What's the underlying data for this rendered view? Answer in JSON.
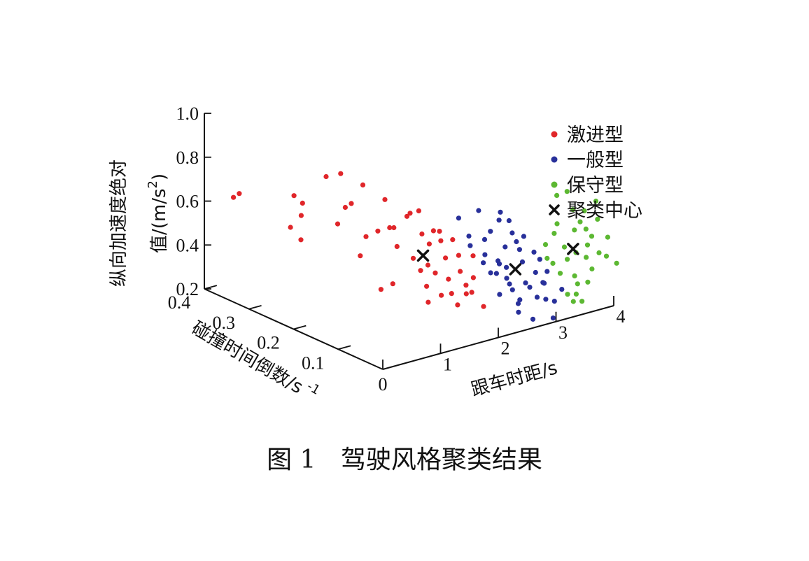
{
  "caption": {
    "figure_no": "图 1",
    "title": "驾驶风格聚类结果"
  },
  "chart_data": {
    "type": "scatter3d",
    "axes": {
      "x": {
        "label": "跟车时距/s",
        "ticks": [
          0,
          1,
          2,
          3,
          4
        ],
        "range": [
          0,
          4
        ]
      },
      "y": {
        "label": "碰撞时间倒数/s",
        "label_sup": "-1",
        "ticks": [
          0,
          0.1,
          0.2,
          0.3,
          0.4
        ],
        "tick_labels": [
          "0",
          "0.1",
          "0.2",
          "0.3",
          "0.4"
        ],
        "range": [
          0,
          0.4
        ]
      },
      "z": {
        "label": "纵向加速度绝对值/(m/s",
        "label_sup": "2",
        "label_tail": ")",
        "ticks": [
          0.2,
          0.4,
          0.6,
          0.8,
          1.0
        ],
        "tick_labels": [
          "0.2",
          "0.4",
          "0.6",
          "0.8",
          "1.0"
        ],
        "range": [
          0.2,
          1.0
        ]
      }
    },
    "legend": {
      "placement": "top-right"
    },
    "series": [
      {
        "name": "激进型",
        "color": "#e0262a",
        "marker": "dot",
        "points": [
          [
            0.35,
            0.38,
            0.61
          ],
          [
            0.45,
            0.38,
            0.62
          ],
          [
            0.75,
            0.28,
            0.59
          ],
          [
            0.78,
            0.3,
            0.66
          ],
          [
            0.85,
            0.29,
            0.63
          ],
          [
            0.72,
            0.3,
            0.52
          ],
          [
            0.95,
            0.25,
            0.78
          ],
          [
            0.97,
            0.22,
            0.82
          ],
          [
            1.0,
            0.2,
            0.7
          ],
          [
            1.05,
            0.22,
            0.66
          ],
          [
            1.1,
            0.18,
            0.56
          ],
          [
            1.0,
            0.18,
            0.48
          ],
          [
            1.05,
            0.14,
            0.36
          ],
          [
            1.1,
            0.12,
            0.4
          ],
          [
            1.15,
            0.16,
            0.6
          ],
          [
            1.2,
            0.14,
            0.63
          ],
          [
            1.25,
            0.13,
            0.55
          ],
          [
            1.3,
            0.1,
            0.52
          ],
          [
            1.35,
            0.09,
            0.47
          ],
          [
            1.4,
            0.08,
            0.5
          ],
          [
            1.3,
            0.07,
            0.42
          ],
          [
            1.4,
            0.12,
            0.7
          ],
          [
            1.45,
            0.1,
            0.62
          ],
          [
            1.5,
            0.09,
            0.58
          ],
          [
            1.45,
            0.07,
            0.47
          ],
          [
            1.55,
            0.06,
            0.54
          ],
          [
            1.6,
            0.06,
            0.44
          ],
          [
            1.5,
            0.04,
            0.4
          ],
          [
            1.65,
            0.04,
            0.49
          ],
          [
            1.7,
            0.05,
            0.55
          ],
          [
            1.6,
            0.08,
            0.64
          ],
          [
            1.75,
            0.04,
            0.42
          ],
          [
            1.8,
            0.03,
            0.46
          ],
          [
            1.2,
            0.2,
            0.77
          ],
          [
            1.35,
            0.17,
            0.72
          ],
          [
            1.55,
            0.12,
            0.7
          ],
          [
            1.65,
            0.1,
            0.62
          ],
          [
            0.9,
            0.3,
            0.45
          ],
          [
            1.15,
            0.25,
            0.55
          ],
          [
            1.25,
            0.06,
            0.36
          ],
          [
            1.45,
            0.02,
            0.37
          ],
          [
            1.85,
            0.04,
            0.38
          ],
          [
            1.7,
            0.09,
            0.58
          ],
          [
            1.9,
            0.02,
            0.33
          ],
          [
            1.35,
            0.15,
            0.61
          ],
          [
            1.5,
            0.14,
            0.66
          ],
          [
            1.6,
            0.02,
            0.41
          ],
          [
            1.95,
            0.05,
            0.53
          ],
          [
            1.4,
            0.05,
            0.39
          ],
          [
            1.75,
            0.07,
            0.6
          ]
        ]
      },
      {
        "name": "一般型",
        "color": "#28309a",
        "marker": "dot",
        "points": [
          [
            1.7,
            0.05,
            0.72
          ],
          [
            1.8,
            0.04,
            0.64
          ],
          [
            1.9,
            0.05,
            0.58
          ],
          [
            2.0,
            0.03,
            0.55
          ],
          [
            2.05,
            0.04,
            0.5
          ],
          [
            2.1,
            0.03,
            0.46
          ],
          [
            2.15,
            0.02,
            0.52
          ],
          [
            2.2,
            0.03,
            0.45
          ],
          [
            2.25,
            0.03,
            0.49
          ],
          [
            2.3,
            0.02,
            0.43
          ],
          [
            2.35,
            0.02,
            0.4
          ],
          [
            2.4,
            0.02,
            0.37
          ],
          [
            2.45,
            0.01,
            0.33
          ],
          [
            2.5,
            0.02,
            0.3
          ],
          [
            2.35,
            0.03,
            0.56
          ],
          [
            2.25,
            0.05,
            0.62
          ],
          [
            2.4,
            0.05,
            0.66
          ],
          [
            2.55,
            0.04,
            0.6
          ],
          [
            2.6,
            0.03,
            0.53
          ],
          [
            2.65,
            0.03,
            0.47
          ],
          [
            2.55,
            0.01,
            0.4
          ],
          [
            2.7,
            0.02,
            0.36
          ],
          [
            2.75,
            0.01,
            0.32
          ],
          [
            2.8,
            0.02,
            0.42
          ],
          [
            2.85,
            0.01,
            0.38
          ],
          [
            2.9,
            0.01,
            0.3
          ],
          [
            2.95,
            0.02,
            0.36
          ],
          [
            2.85,
            0.03,
            0.5
          ],
          [
            2.75,
            0.04,
            0.57
          ],
          [
            2.95,
            0.03,
            0.46
          ],
          [
            3.0,
            0.02,
            0.41
          ],
          [
            3.05,
            0.01,
            0.28
          ],
          [
            2.6,
            0.0,
            0.24
          ],
          [
            2.65,
            0.06,
            0.63
          ],
          [
            2.5,
            0.06,
            0.68
          ],
          [
            2.2,
            0.07,
            0.7
          ],
          [
            2.95,
            0.0,
            0.22
          ],
          [
            2.15,
            0.05,
            0.59
          ],
          [
            2.7,
            0.05,
            0.54
          ],
          [
            2.45,
            0.04,
            0.45
          ],
          [
            3.1,
            0.0,
            0.34
          ],
          [
            2.35,
            0.0,
            0.29
          ],
          [
            2.1,
            0.01,
            0.38
          ]
        ]
      },
      {
        "name": "保守型",
        "color": "#5cb832",
        "marker": "dot",
        "points": [
          [
            3.0,
            0.02,
            0.47
          ],
          [
            3.05,
            0.03,
            0.52
          ],
          [
            3.1,
            0.02,
            0.44
          ],
          [
            3.15,
            0.01,
            0.4
          ],
          [
            3.2,
            0.03,
            0.56
          ],
          [
            3.25,
            0.03,
            0.6
          ],
          [
            3.3,
            0.02,
            0.5
          ],
          [
            3.35,
            0.02,
            0.44
          ],
          [
            3.4,
            0.01,
            0.37
          ],
          [
            3.45,
            0.01,
            0.33
          ],
          [
            3.5,
            0.02,
            0.46
          ],
          [
            3.55,
            0.03,
            0.55
          ],
          [
            3.6,
            0.04,
            0.63
          ],
          [
            3.65,
            0.03,
            0.58
          ],
          [
            3.7,
            0.02,
            0.48
          ],
          [
            3.75,
            0.03,
            0.54
          ],
          [
            3.8,
            0.04,
            0.61
          ],
          [
            3.85,
            0.03,
            0.5
          ],
          [
            3.9,
            0.02,
            0.43
          ],
          [
            3.95,
            0.03,
            0.57
          ],
          [
            4.0,
            0.04,
            0.64
          ],
          [
            3.5,
            0.04,
            0.72
          ],
          [
            3.4,
            0.05,
            0.7
          ],
          [
            3.35,
            0.0,
            0.3
          ],
          [
            3.55,
            0.0,
            0.34
          ],
          [
            3.7,
            0.01,
            0.38
          ],
          [
            3.3,
            0.0,
            0.27
          ],
          [
            3.45,
            0.0,
            0.26
          ],
          [
            3.95,
            0.01,
            0.42
          ],
          [
            4.05,
            0.02,
            0.49
          ],
          [
            4.05,
            0.0,
            0.39
          ],
          [
            3.2,
            0.0,
            0.31
          ],
          [
            3.6,
            0.01,
            0.44
          ]
        ]
      },
      {
        "name": "聚类中心",
        "color": "#111111",
        "marker": "x",
        "points": [
          [
            1.47,
            0.1,
            0.52
          ],
          [
            2.45,
            0.02,
            0.46
          ],
          [
            3.45,
            0.02,
            0.48
          ]
        ]
      }
    ]
  }
}
